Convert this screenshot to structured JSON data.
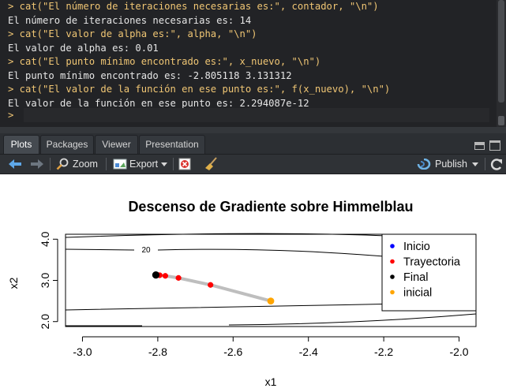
{
  "console": {
    "lines": [
      {
        "type": "cmd",
        "text": "> cat(\"El número de iteraciones necesarias es:\", contador, \"\\n\")"
      },
      {
        "type": "out",
        "text": "El número de iteraciones necesarias es: 14"
      },
      {
        "type": "cmd",
        "text": "> cat(\"El valor de alpha es:\", alpha, \"\\n\")"
      },
      {
        "type": "out",
        "text": "El valor de alpha es: 0.01"
      },
      {
        "type": "cmd",
        "text": "> cat(\"El punto mínimo encontrado es:\", x_nuevo, \"\\n\")"
      },
      {
        "type": "out",
        "text": "El punto mínimo encontrado es: -2.805118 3.131312"
      },
      {
        "type": "cmd",
        "text": "> cat(\"El valor de la función en ese punto es:\", f(x_nuevo), \"\\n\")"
      },
      {
        "type": "out",
        "text": "El valor de la función en ese punto es: 2.294087e-12"
      }
    ],
    "prompt": ">"
  },
  "tabs": [
    "Plots",
    "Packages",
    "Viewer",
    "Presentation"
  ],
  "active_tab": "Plots",
  "toolbar": {
    "zoom_label": "Zoom",
    "export_label": "Export",
    "publish_label": "Publish"
  },
  "icons": [
    "back-arrow-icon",
    "forward-arrow-icon",
    "zoom-icon",
    "export-icon",
    "dropdown-caret-icon",
    "remove-plot-icon",
    "broom-icon",
    "publish-icon",
    "refresh-icon"
  ],
  "colors": {
    "console_bg": "#222326",
    "command": "#f0c674",
    "output": "#e6e6e6",
    "start": "#0000ff",
    "trajectory": "#ff0000",
    "final": "#000000",
    "initial": "#ffa500",
    "path_line": "#bebebe"
  },
  "chart_data": {
    "type": "scatter",
    "title": "Descenso de Gradiente sobre Himmelblau",
    "xlabel": "x1",
    "ylabel": "x2",
    "xlim": [
      -3.0,
      -2.0
    ],
    "ylim": [
      2.0,
      4.0
    ],
    "x_ticks": [
      "-3.0",
      "-2.8",
      "-2.6",
      "-2.4",
      "-2.2",
      "-2.0"
    ],
    "y_ticks": [
      "2.0",
      "3.0",
      "4.0"
    ],
    "contour_label": "20",
    "legend": {
      "position": "top-right",
      "entries": [
        {
          "label": "Inicio",
          "color": "#0000ff"
        },
        {
          "label": "Trayectoria",
          "color": "#ff0000"
        },
        {
          "label": "Final",
          "color": "#000000"
        },
        {
          "label": "inicial",
          "color": "#ffa500"
        }
      ]
    },
    "path": [
      [
        -2.5,
        2.5
      ],
      [
        -2.66,
        2.89
      ],
      [
        -2.745,
        3.06
      ],
      [
        -2.78,
        3.11
      ],
      [
        -2.795,
        3.125
      ],
      [
        -2.8,
        3.13
      ],
      [
        -2.805,
        3.131
      ]
    ],
    "trajectory_points": [
      [
        -2.66,
        2.89
      ],
      [
        -2.745,
        3.06
      ],
      [
        -2.78,
        3.11
      ],
      [
        -2.795,
        3.125
      ],
      [
        -2.8,
        3.13
      ]
    ],
    "final_point": [
      -2.805118,
      3.131312
    ],
    "initial_point": [
      -2.5,
      2.5
    ]
  }
}
